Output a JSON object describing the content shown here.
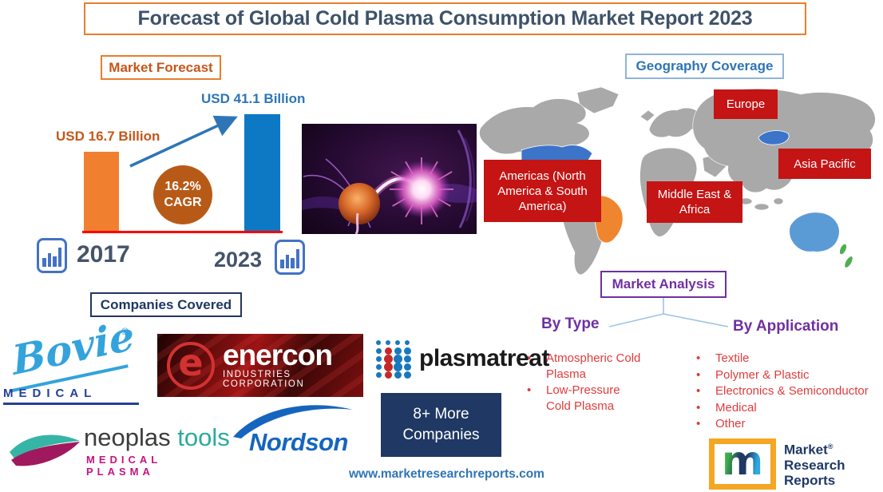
{
  "title": "Forecast of Global Cold Plasma Consumption Market Report 2023",
  "market_forecast": {
    "label": "Market Forecast",
    "value_2017": "USD 16.7 Billion",
    "value_2023": "USD 41.1 Billion",
    "year_2017": "2017",
    "year_2023": "2023",
    "cagr_value": "16.2%",
    "cagr_label": "CAGR"
  },
  "geography": {
    "label": "Geography Coverage",
    "regions": {
      "americas": "Americas (North America & South America)",
      "europe": "Europe",
      "middle_east_africa": "Middle East & Africa",
      "asia_pacific": "Asia Pacific"
    }
  },
  "market_analysis": {
    "label": "Market Analysis",
    "by_type": {
      "heading": "By Type",
      "items": [
        "Atmospheric Cold Plasma",
        "Low-Pressure Cold Plasma"
      ]
    },
    "by_application": {
      "heading": "By Application",
      "items": [
        "Textile",
        "Polymer & Plastic",
        "Electronics & Semiconductor",
        "Medical",
        "Other"
      ]
    }
  },
  "companies": {
    "label": "Companies Covered",
    "bovie": {
      "name": "Bovie",
      "registered": "®",
      "subtitle": "MEDICAL"
    },
    "enercon": {
      "monogram": "e",
      "name": "enercon",
      "subtitle": "INDUSTRIES CORPORATION"
    },
    "plasmatreat": {
      "name": "plasmatreat"
    },
    "neoplas": {
      "name_part1": "neoplas",
      "name_part2": "tools",
      "subtitle": "MEDICAL PLASMA"
    },
    "nordson": {
      "name": "Nordson"
    },
    "more_companies": {
      "line1": "8+ More",
      "line2": "Companies"
    }
  },
  "footer": {
    "website": "www.marketresearchreports.com",
    "brand": {
      "monogram": "m",
      "line1": "Market",
      "line2": "Research",
      "line3": "Reports",
      "registered": "®"
    }
  },
  "colors": {
    "accent_orange": "#E87E2E",
    "bar_2017": "#F0802F",
    "bar_2023": "#0D78C4",
    "cagr_circle": "#B85A17",
    "region_box_red": "#C41414",
    "analysis_purple": "#7030A0",
    "list_red": "#E03C3C",
    "heading_blue": "#2E75B6",
    "navy": "#1F3864",
    "title_text": "#3E5269"
  },
  "chart_data": {
    "type": "bar",
    "title": "Market Forecast",
    "categories": [
      "2017",
      "2023"
    ],
    "values": [
      16.7,
      41.1
    ],
    "unit": "USD Billion",
    "value_labels": [
      "USD 16.7 Billion",
      "USD 41.1 Billion"
    ],
    "annotations": [
      "16.2% CAGR"
    ],
    "colors": [
      "#F0802F",
      "#0D78C4"
    ],
    "legend": false,
    "grid": false
  }
}
